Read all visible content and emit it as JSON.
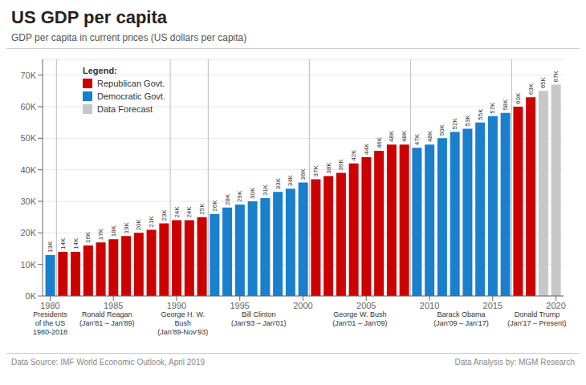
{
  "chart_data": {
    "type": "bar",
    "title": "US GDP per capita",
    "subtitle": "GDP per capita in current prices (US dollars per capita)",
    "footer_left": "Data Source: IMF World Economic Outlook, April 2019",
    "footer_right": "Data Analysis by: MGM Research",
    "x": [
      1980,
      1981,
      1982,
      1983,
      1984,
      1985,
      1986,
      1987,
      1988,
      1989,
      1990,
      1991,
      1992,
      1993,
      1994,
      1995,
      1996,
      1997,
      1998,
      1999,
      2000,
      2001,
      2002,
      2003,
      2004,
      2005,
      2006,
      2007,
      2008,
      2009,
      2010,
      2011,
      2012,
      2013,
      2014,
      2015,
      2016,
      2017,
      2018,
      2019,
      2020
    ],
    "values": [
      13000,
      14000,
      14000,
      16000,
      17000,
      18000,
      19000,
      20000,
      21000,
      23000,
      24000,
      24000,
      25000,
      26000,
      28000,
      29000,
      30000,
      31000,
      33000,
      34000,
      36000,
      37000,
      38000,
      39000,
      42000,
      44000,
      46000,
      48000,
      48000,
      47000,
      48000,
      50000,
      52000,
      53000,
      55000,
      57000,
      58000,
      60000,
      63000,
      65000,
      67000
    ],
    "value_labels": [
      "13K",
      "14K",
      "14K",
      "16K",
      "17K",
      "18K",
      "19K",
      "20K",
      "21K",
      "23K",
      "24K",
      "24K",
      "25K",
      "26K",
      "28K",
      "29K",
      "30K",
      "31K",
      "33K",
      "34K",
      "36K",
      "37K",
      "38K",
      "39K",
      "42K",
      "44K",
      "46K",
      "48K",
      "48K",
      "47K",
      "48K",
      "50K",
      "52K",
      "53K",
      "55K",
      "57K",
      "58K",
      "60K",
      "63K",
      "65K",
      "67K"
    ],
    "data_labels": true,
    "colors": [
      "#1a7fcc",
      "#cc0000",
      "#cc0000",
      "#cc0000",
      "#cc0000",
      "#cc0000",
      "#cc0000",
      "#cc0000",
      "#cc0000",
      "#cc0000",
      "#cc0000",
      "#cc0000",
      "#cc0000",
      "#1a7fcc",
      "#1a7fcc",
      "#1a7fcc",
      "#1a7fcc",
      "#1a7fcc",
      "#1a7fcc",
      "#1a7fcc",
      "#1a7fcc",
      "#cc0000",
      "#cc0000",
      "#cc0000",
      "#cc0000",
      "#cc0000",
      "#cc0000",
      "#cc0000",
      "#cc0000",
      "#1a7fcc",
      "#1a7fcc",
      "#1a7fcc",
      "#1a7fcc",
      "#1a7fcc",
      "#1a7fcc",
      "#1a7fcc",
      "#1a7fcc",
      "#cc0000",
      "#cc0000",
      "#c8c8c8",
      "#c8c8c8"
    ],
    "xlim": [
      1979.4,
      2020.6
    ],
    "xticks": [
      1980,
      1985,
      1990,
      1995,
      2000,
      2005,
      2010,
      2015,
      2020
    ],
    "ylim": [
      0,
      75000
    ],
    "yticks": [
      {
        "value": 0,
        "label": "0K"
      },
      {
        "value": 10000,
        "label": "10K"
      },
      {
        "value": 20000,
        "label": "20K"
      },
      {
        "value": 30000,
        "label": "30K"
      },
      {
        "value": 40000,
        "label": "40K"
      },
      {
        "value": 50000,
        "label": "50K"
      },
      {
        "value": 60000,
        "label": "60K"
      },
      {
        "value": 70000,
        "label": "70K"
      }
    ],
    "grid": true,
    "legend": "upper left",
    "legend_title": "Legend:",
    "legend_items": [
      {
        "name": "Republican Govt.",
        "color": "#cc0000"
      },
      {
        "name": "Democratic Govt.",
        "color": "#1a7fcc"
      },
      {
        "name": "Data Forecast",
        "color": "#c8c8c8"
      }
    ],
    "vlines": [
      1980.5,
      1989.5,
      1992.5,
      2000.5,
      2008.5,
      2016.5
    ],
    "annotations": [
      {
        "text": "Presidents\nof the US\n1980-2018",
        "x": 1980
      },
      {
        "text": "Ronald Reagan\n(Jan'81 – Jan'89)",
        "x": 1984.5
      },
      {
        "text": "George H. W.\nBush\n(Jan'89-Nov'93)",
        "x": 1990.5
      },
      {
        "text": "Bill Clinton\n(Jan'93 – Jan'01)",
        "x": 1996.5
      },
      {
        "text": "George W. Bush\n(Jan'01 – Jan'09)",
        "x": 2004.5
      },
      {
        "text": "Barack Obama\n(Jan'09 – Jan'17)",
        "x": 2012.5
      },
      {
        "text": "Donald Trump\n(Jan'17 – Present)",
        "x": 2018.5
      }
    ]
  }
}
